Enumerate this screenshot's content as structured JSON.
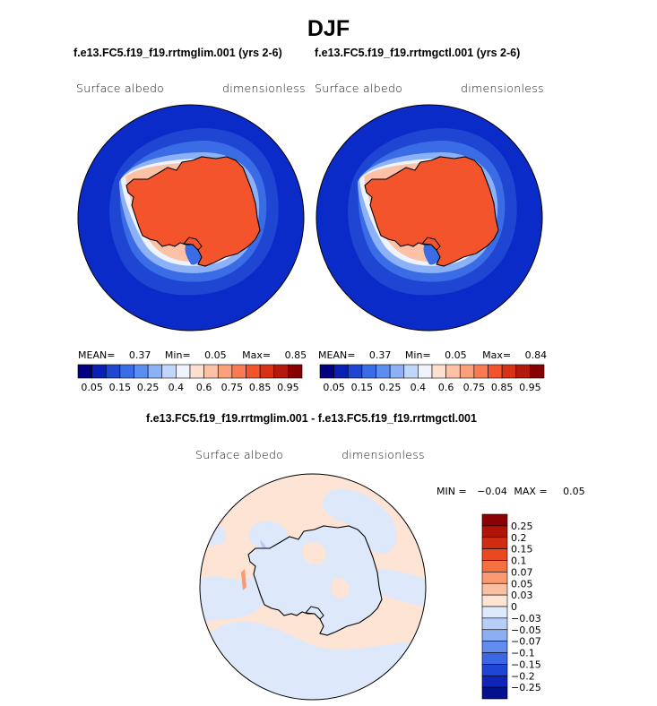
{
  "figure": {
    "title": "DJF"
  },
  "panels": [
    {
      "title": "f.e13.FC5.f19_f19.rrtmglim.001 (yrs 2-6)",
      "left_label": "Surface albedo",
      "right_label": "dimensionless",
      "stats": {
        "mean_label": "MEAN=",
        "mean": "0.37",
        "min_label": "Min=",
        "min": "0.05",
        "max_label": "Max=",
        "max": "0.85"
      }
    },
    {
      "title": "f.e13.FC5.f19_f19.rrtmgctl.001 (yrs 2-6)",
      "left_label": "Surface albedo",
      "right_label": "dimensionless",
      "stats": {
        "mean_label": "MEAN=",
        "mean": "0.37",
        "min_label": "Min=",
        "min": "0.05",
        "max_label": "Max=",
        "max": "0.84"
      }
    }
  ],
  "diff_panel": {
    "title": "f.e13.FC5.f19_f19.rrtmglim.001 - f.e13.FC5.f19_f19.rrtmgctl.001",
    "left_label": "Surface albedo",
    "right_label": "dimensionless",
    "stats": {
      "min_label": "MIN =",
      "min": "−0.04",
      "max_label": "MAX =",
      "max": "0.05"
    }
  },
  "colorbar_main": {
    "colors": [
      "#000080",
      "#0a1fb4",
      "#1e46d2",
      "#3a6ce6",
      "#5b8ef0",
      "#8cb1f6",
      "#c1d6fb",
      "#eef3fe",
      "#fde0d0",
      "#fdc2a6",
      "#fca07c",
      "#fb7a52",
      "#f4542b",
      "#d83216",
      "#b31a0d",
      "#880000"
    ],
    "labels": [
      "0.05",
      "0.15",
      "0.25",
      "0.4",
      "0.6",
      "0.75",
      "0.85",
      "0.95"
    ]
  },
  "colorbar_diff": {
    "colors": [
      "#8b0000",
      "#b01408",
      "#cf2c12",
      "#e8491f",
      "#f5703f",
      "#f99a73",
      "#fbbfa2",
      "#fde4d4",
      "#dde8fb",
      "#b6cdf7",
      "#8caef3",
      "#628ced",
      "#3a68e4",
      "#1f45d6",
      "#0f25b8",
      "#04108c"
    ],
    "labels": [
      "0.25",
      "0.2",
      "0.15",
      "0.1",
      "0.07",
      "0.05",
      "0.03",
      "0",
      "−0.03",
      "−0.05",
      "−0.07",
      "−0.1",
      "−0.15",
      "−0.2",
      "−0.25"
    ]
  }
}
